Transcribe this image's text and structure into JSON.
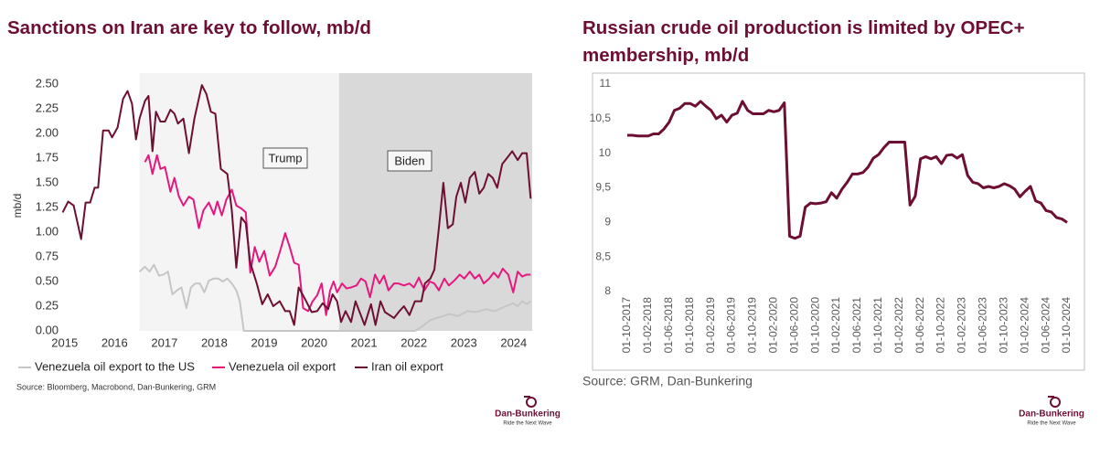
{
  "chart_data": [
    {
      "type": "line",
      "title": "Sanctions on Iran are key to follow, mb/d",
      "y_label": "mb/d",
      "xlim": [
        2015.45,
        2024.87
      ],
      "xticks": [
        {
          "value": 2015.5,
          "label": "2015"
        },
        {
          "value": 2016.5,
          "label": "2016"
        },
        {
          "value": 2017.5,
          "label": "2017"
        },
        {
          "value": 2018.5,
          "label": "2018"
        },
        {
          "value": 2019.5,
          "label": "2019"
        },
        {
          "value": 2020.5,
          "label": "2020"
        },
        {
          "value": 2021.5,
          "label": "2021"
        },
        {
          "value": 2022.5,
          "label": "2022"
        },
        {
          "value": 2023.5,
          "label": "2023"
        },
        {
          "value": 2024.5,
          "label": "2024"
        }
      ],
      "ylim": [
        0,
        2.5
      ],
      "yticks": [
        {
          "value": 0,
          "label": "0.00"
        },
        0.25,
        {
          "value": 0.5,
          "label": "0.50"
        },
        0.75,
        {
          "value": 1,
          "label": "1.00"
        },
        1.25,
        {
          "value": 1.5,
          "label": "1.50"
        },
        1.75,
        {
          "value": 2,
          "label": "2.00"
        },
        2.25,
        {
          "value": 2.5,
          "label": "2.50"
        }
      ],
      "grid": false,
      "shaded_regions": [
        {
          "label": "Trump",
          "start": 2017.0,
          "end": 2021.0,
          "color": "#f4f4f4"
        },
        {
          "label": "Biden",
          "start": 2021.0,
          "end": 2024.87,
          "color": "#d9d9d9"
        }
      ],
      "series": [
        {
          "name": "Venezuela oil export to the US",
          "color": "#c6c6c6",
          "x": [
            2017.0,
            2017.11,
            2017.2,
            2017.29,
            2017.39,
            2017.48,
            2017.57,
            2017.66,
            2017.75,
            2017.84,
            2017.94,
            2018.03,
            2018.12,
            2018.21,
            2018.3,
            2018.39,
            2018.49,
            2018.58,
            2018.67,
            2018.76,
            2018.85,
            2018.94,
            2019.01,
            2019.09,
            2022.52,
            2022.65,
            2022.83,
            2023.02,
            2023.2,
            2023.39,
            2023.57,
            2023.75,
            2023.94,
            2024.12,
            2024.3,
            2024.49,
            2024.58,
            2024.67,
            2024.76,
            2024.84
          ],
          "values": [
            0.6,
            0.65,
            0.6,
            0.67,
            0.56,
            0.57,
            0.6,
            0.37,
            0.41,
            0.44,
            0.23,
            0.44,
            0.48,
            0.48,
            0.39,
            0.51,
            0.53,
            0.53,
            0.5,
            0.53,
            0.48,
            0.41,
            0.3,
            0,
            0,
            0.04,
            0.11,
            0.14,
            0.17,
            0.15,
            0.2,
            0.19,
            0.22,
            0.2,
            0.24,
            0.28,
            0.25,
            0.3,
            0.27,
            0.3
          ]
        },
        {
          "name": "Venezuela oil export",
          "color": "#e6177f",
          "x": [
            2017.11,
            2017.18,
            2017.26,
            2017.35,
            2017.42,
            2017.51,
            2017.62,
            2017.7,
            2017.79,
            2017.88,
            2017.99,
            2018.08,
            2018.19,
            2018.28,
            2018.39,
            2018.49,
            2018.56,
            2018.65,
            2018.74,
            2018.85,
            2018.94,
            2019.04,
            2019.13,
            2019.22,
            2019.31,
            2019.4,
            2019.5,
            2019.61,
            2019.72,
            2019.83,
            2019.92,
            2020.01,
            2020.1,
            2020.19,
            2020.28,
            2020.38,
            2020.47,
            2020.56,
            2020.65,
            2020.74,
            2020.82,
            2020.89,
            2020.96,
            2021.06,
            2021.15,
            2021.24,
            2021.35,
            2021.44,
            2021.53,
            2021.62,
            2021.72,
            2021.81,
            2021.9,
            2021.99,
            2022.1,
            2022.19,
            2022.3,
            2022.41,
            2022.5,
            2022.6,
            2022.71,
            2022.82,
            2022.91,
            2023.0,
            2023.11,
            2023.2,
            2023.31,
            2023.42,
            2023.51,
            2023.62,
            2023.72,
            2023.81,
            2023.9,
            2024.01,
            2024.1,
            2024.19,
            2024.28,
            2024.39,
            2024.49,
            2024.58,
            2024.67,
            2024.76,
            2024.84
          ],
          "values": [
            1.71,
            1.78,
            1.59,
            1.78,
            1.64,
            1.66,
            1.41,
            1.55,
            1.36,
            1.27,
            1.36,
            1.33,
            1.04,
            1.22,
            1.3,
            1.18,
            1.31,
            1.17,
            1.33,
            1.43,
            1.27,
            1.24,
            1.2,
            0.59,
            0.85,
            0.7,
            0.81,
            0.56,
            0.65,
            0.83,
            0.99,
            0.85,
            0.69,
            0.67,
            0.23,
            0.2,
            0.3,
            0.36,
            0.48,
            0.16,
            0.41,
            0.5,
            0.39,
            0.48,
            0.43,
            0.44,
            0.46,
            0.53,
            0.5,
            0.34,
            0.57,
            0.48,
            0.56,
            0.41,
            0.48,
            0.48,
            0.46,
            0.48,
            0.44,
            0.54,
            0.41,
            0.5,
            0.48,
            0.41,
            0.53,
            0.46,
            0.51,
            0.57,
            0.53,
            0.6,
            0.53,
            0.57,
            0.48,
            0.53,
            0.59,
            0.54,
            0.63,
            0.57,
            0.39,
            0.6,
            0.55,
            0.57,
            0.57
          ]
        },
        {
          "name": "Iran oil export",
          "color": "#6d0f33",
          "x": [
            2015.46,
            2015.57,
            2015.68,
            2015.83,
            2015.92,
            2016.01,
            2016.1,
            2016.17,
            2016.27,
            2016.38,
            2016.45,
            2016.56,
            2016.67,
            2016.76,
            2016.85,
            2016.93,
            2017.0,
            2017.11,
            2017.18,
            2017.26,
            2017.33,
            2017.42,
            2017.51,
            2017.62,
            2017.7,
            2017.77,
            2017.88,
            2017.99,
            2018.1,
            2018.25,
            2018.34,
            2018.43,
            2018.52,
            2018.63,
            2018.76,
            2018.85,
            2018.94,
            2019.04,
            2019.13,
            2019.22,
            2019.35,
            2019.46,
            2019.57,
            2019.68,
            2019.81,
            2019.92,
            2020.01,
            2020.1,
            2020.19,
            2020.32,
            2020.45,
            2020.56,
            2020.67,
            2020.78,
            2020.87,
            2020.96,
            2021.04,
            2021.13,
            2021.24,
            2021.33,
            2021.42,
            2021.51,
            2021.64,
            2021.73,
            2021.83,
            2021.92,
            2022.01,
            2022.1,
            2022.21,
            2022.3,
            2022.41,
            2022.52,
            2022.65,
            2022.72,
            2022.83,
            2022.91,
            2023.0,
            2023.09,
            2023.18,
            2023.28,
            2023.35,
            2023.44,
            2023.53,
            2023.62,
            2023.72,
            2023.81,
            2023.9,
            2023.99,
            2024.08,
            2024.17,
            2024.27,
            2024.38,
            2024.47,
            2024.58,
            2024.67,
            2024.76,
            2024.84
          ],
          "values": [
            1.2,
            1.31,
            1.27,
            0.93,
            1.3,
            1.3,
            1.45,
            1.45,
            2.03,
            2.03,
            1.96,
            2.06,
            2.35,
            2.43,
            2.3,
            1.94,
            2.15,
            2.33,
            2.38,
            1.82,
            2.22,
            2.12,
            2.12,
            2.24,
            2.2,
            2.1,
            2.15,
            1.8,
            2.15,
            2.49,
            2.4,
            2.22,
            2.2,
            1.64,
            1.59,
            1.22,
            0.64,
            1.15,
            1.09,
            0.69,
            0.48,
            0.27,
            0.37,
            0.25,
            0.3,
            0.2,
            0.2,
            0.06,
            0.44,
            0.32,
            0.19,
            0.2,
            0.28,
            0.22,
            0.37,
            0.3,
            0.09,
            0.2,
            0.09,
            0.3,
            0.18,
            0.06,
            0.27,
            0.06,
            0.3,
            0.19,
            0.16,
            0.13,
            0.2,
            0.25,
            0.16,
            0.3,
            0.3,
            0.48,
            0.53,
            0.62,
            1.04,
            1.5,
            1.04,
            1.08,
            1.36,
            1.5,
            1.3,
            1.55,
            1.61,
            1.39,
            1.45,
            1.59,
            1.55,
            1.45,
            1.69,
            1.76,
            1.82,
            1.73,
            1.8,
            1.8,
            1.34
          ]
        }
      ],
      "source": "Source: Bloomberg, Macrobond, Dan-Bunkering, GRM",
      "logo": {
        "name": "Dan-Bunkering",
        "tagline": "Ride the Next Wave"
      }
    },
    {
      "type": "line",
      "title": "Russian crude oil production is limited by OPEC+ membership, mb/d",
      "categories": [
        "01-10-2017",
        null,
        null,
        null,
        "01-02-2018",
        null,
        null,
        null,
        "01-06-2018",
        null,
        null,
        null,
        "01-10-2018",
        null,
        null,
        null,
        "01-02-2019",
        null,
        null,
        null,
        "01-06-2019",
        null,
        null,
        null,
        "01-10-2019",
        null,
        null,
        null,
        "01-02-2020",
        null,
        null,
        null,
        "01-06-2020",
        null,
        null,
        null,
        "01-10-2020",
        null,
        null,
        null,
        "01-02-2021",
        null,
        null,
        null,
        "01-06-2021",
        null,
        null,
        null,
        "01-10-2021",
        null,
        null,
        null,
        "01-02-2022",
        null,
        null,
        null,
        "01-06-2022",
        null,
        null,
        null,
        "01-10-2022",
        null,
        null,
        null,
        "01-02-2023",
        null,
        null,
        null,
        "01-06-2023",
        null,
        null,
        null,
        "01-10-2023",
        null,
        null,
        null,
        "01-02-2024",
        null,
        null,
        null,
        "01-06-2024",
        null,
        null,
        null,
        "01-10-2024"
      ],
      "values": [
        10.26,
        10.26,
        10.25,
        10.25,
        10.25,
        10.28,
        10.28,
        10.35,
        10.45,
        10.62,
        10.65,
        10.72,
        10.72,
        10.68,
        10.75,
        10.68,
        10.62,
        10.5,
        10.55,
        10.45,
        10.55,
        10.58,
        10.75,
        10.62,
        10.57,
        10.57,
        10.57,
        10.62,
        10.6,
        10.62,
        10.73,
        8.8,
        8.77,
        8.8,
        9.22,
        9.28,
        9.27,
        9.28,
        9.3,
        9.43,
        9.35,
        9.48,
        9.58,
        9.7,
        9.7,
        9.72,
        9.8,
        9.93,
        9.98,
        10.08,
        10.16,
        10.16,
        10.16,
        10.16,
        9.25,
        9.38,
        9.92,
        9.95,
        9.92,
        9.95,
        9.85,
        9.97,
        9.98,
        9.93,
        9.98,
        9.68,
        9.58,
        9.56,
        9.5,
        9.52,
        9.5,
        9.52,
        9.56,
        9.53,
        9.48,
        9.37,
        9.45,
        9.52,
        9.31,
        9.28,
        9.17,
        9.15,
        9.07,
        9.05,
        9.0
      ],
      "color": "#6d0f33",
      "ylim": [
        8,
        11
      ],
      "yticks": [
        8,
        {
          "value": 8.5,
          "label": "8,5"
        },
        9,
        {
          "value": 9.5,
          "label": "9,5"
        },
        10,
        {
          "value": 10.5,
          "label": "10,5"
        },
        11
      ],
      "grid": false,
      "source": "Source: GRM, Dan-Bunkering",
      "logo": {
        "name": "Dan-Bunkering",
        "tagline": "Ride the Next Wave"
      }
    }
  ]
}
